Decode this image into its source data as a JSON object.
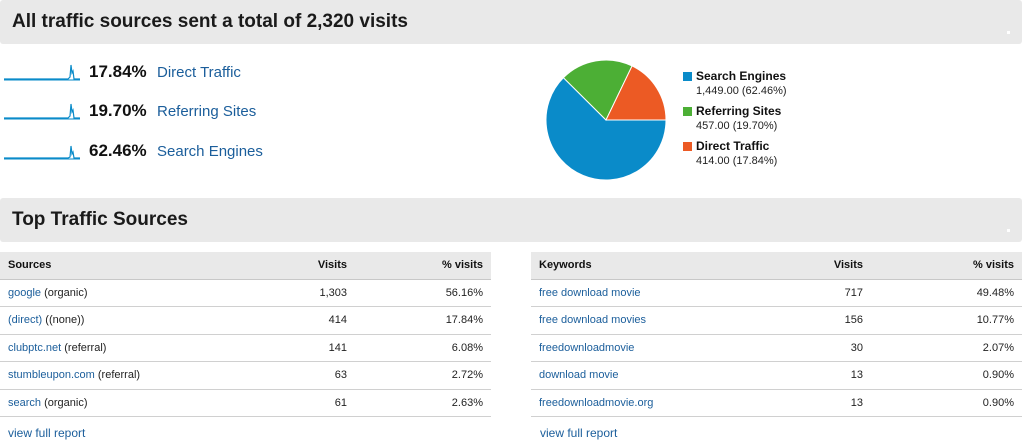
{
  "summary": {
    "title": "All traffic sources sent a total of 2,320 visits",
    "rows": [
      {
        "percent": "17.84%",
        "label": "Direct Traffic"
      },
      {
        "percent": "19.70%",
        "label": "Referring Sites"
      },
      {
        "percent": "62.46%",
        "label": "Search Engines"
      }
    ]
  },
  "colors": {
    "search_engines": "#0a8bc9",
    "referring_sites": "#4caf35",
    "direct_traffic": "#ec5a24",
    "link": "#1b5e9b"
  },
  "chart_data": {
    "type": "pie",
    "slices": [
      {
        "name": "Search Engines",
        "value": 1449.0,
        "percent": 62.46,
        "display": "1,449.00 (62.46%)"
      },
      {
        "name": "Referring Sites",
        "value": 457.0,
        "percent": 19.7,
        "display": "457.00 (19.70%)"
      },
      {
        "name": "Direct Traffic",
        "value": 414.0,
        "percent": 17.84,
        "display": "414.00 (17.84%)"
      }
    ],
    "legend_position": "right"
  },
  "top_sources": {
    "title": "Top Traffic Sources",
    "sources_table": {
      "headers": [
        "Sources",
        "Visits",
        "% visits"
      ],
      "rows": [
        {
          "source": "google",
          "medium": " (organic)",
          "visits": "1,303",
          "pct": "56.16%"
        },
        {
          "source": "(direct)",
          "medium": " ((none))",
          "visits": "414",
          "pct": "17.84%"
        },
        {
          "source": "clubptc.net",
          "medium": " (referral)",
          "visits": "141",
          "pct": "6.08%"
        },
        {
          "source": "stumbleupon.com",
          "medium": " (referral)",
          "visits": "63",
          "pct": "2.72%"
        },
        {
          "source": "search",
          "medium": " (organic)",
          "visits": "61",
          "pct": "2.63%"
        }
      ],
      "view_full_report": "view full report"
    },
    "keywords_table": {
      "headers": [
        "Keywords",
        "Visits",
        "% visits"
      ],
      "rows": [
        {
          "keyword": "free download movie",
          "visits": "717",
          "pct": "49.48%"
        },
        {
          "keyword": "free download movies",
          "visits": "156",
          "pct": "10.77%"
        },
        {
          "keyword": "freedownloadmovie",
          "visits": "30",
          "pct": "2.07%"
        },
        {
          "keyword": "download movie",
          "visits": "13",
          "pct": "0.90%"
        },
        {
          "keyword": "freedownloadmovie.org",
          "visits": "13",
          "pct": "0.90%"
        }
      ],
      "view_full_report": "view full report"
    }
  }
}
